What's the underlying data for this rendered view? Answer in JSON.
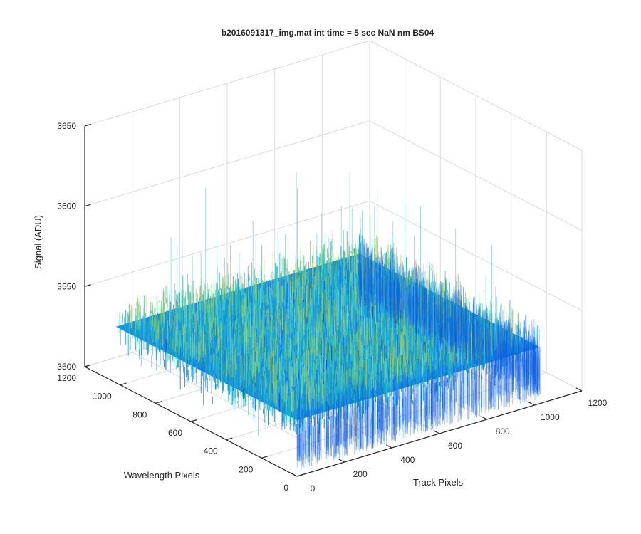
{
  "chart_data": {
    "type": "surface",
    "title": "b2016091317_img.mat int time = 5 sec  NaN nm BS04",
    "x_axis": {
      "label": "Track Pixels",
      "range": [
        0,
        1200
      ],
      "ticks": [
        "0",
        "200",
        "400",
        "600",
        "800",
        "1000",
        "1200"
      ]
    },
    "y_axis": {
      "label": "Wavelength Pixels",
      "range": [
        0,
        1200
      ],
      "ticks": [
        "0",
        "200",
        "400",
        "600",
        "800",
        "1000",
        "1200"
      ]
    },
    "z_axis": {
      "label": "Signal (ADU)",
      "range": [
        3500,
        3650
      ],
      "ticks": [
        "3500",
        "3550",
        "3600",
        "3650"
      ]
    },
    "grid": true,
    "surface": {
      "x_extent": [
        0,
        1024
      ],
      "y_extent": [
        0,
        1024
      ],
      "mean_signal": 3535,
      "noise_band": [
        3515,
        3555
      ],
      "spike_max": 3615,
      "colormap": [
        "#0a3fd6",
        "#1577e0",
        "#16a6d8",
        "#25bcc8",
        "#62c99f",
        "#a9d060"
      ]
    }
  }
}
